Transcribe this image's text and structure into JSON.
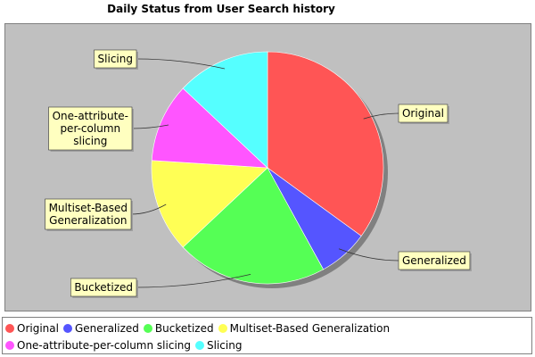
{
  "chart_data": {
    "type": "pie",
    "title": "Daily Status from User Search history",
    "slices": [
      {
        "label": "Original",
        "value": 35,
        "color": "#ff5555"
      },
      {
        "label": "Generalized",
        "value": 7,
        "color": "#5555ff"
      },
      {
        "label": "Bucketized",
        "value": 21,
        "color": "#55ff55"
      },
      {
        "label": "Multiset-Based Generalization",
        "value": 13,
        "color": "#ffff55"
      },
      {
        "label": "One-attribute-per-column slicing",
        "value": 11,
        "color": "#ff55ff"
      },
      {
        "label": "Slicing",
        "value": 13,
        "color": "#55ffff"
      }
    ],
    "legend": {
      "position": "bottom",
      "items": [
        "Original",
        "Generalized",
        "Bucketized",
        "Multiset-Based Generalization",
        "One-attribute-per-column slicing",
        "Slicing"
      ]
    },
    "callout_labels": [
      "Original",
      "Generalized",
      "Bucketized",
      "Multiset-Based\nGeneralization",
      "One-attribute-\nper-column\nslicing",
      "Slicing"
    ]
  }
}
